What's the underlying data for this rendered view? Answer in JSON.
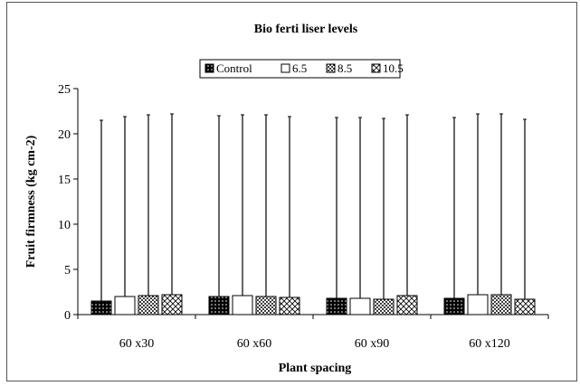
{
  "chart_data": {
    "type": "bar",
    "title": "Bio ferti liser levels",
    "xlabel": "Plant spacing",
    "ylabel": "Fruit firmness (kg cm-2)",
    "ylim": [
      0,
      25
    ],
    "yticks": [
      0,
      5,
      10,
      15,
      20,
      25
    ],
    "grid": false,
    "legend_position": "top",
    "error_bars": true,
    "categories": [
      "60 x30",
      "60 x60",
      "60 x90",
      "60 x120"
    ],
    "series": [
      {
        "name": "Control",
        "pattern": "black-dots",
        "values": [
          1.5,
          2.0,
          1.8,
          1.8
        ],
        "error_high": [
          21.5,
          22.0,
          21.8,
          21.8
        ]
      },
      {
        "name": "6.5",
        "pattern": "white",
        "values": [
          2.0,
          2.1,
          1.8,
          2.2
        ],
        "error_high": [
          21.9,
          22.1,
          21.8,
          22.2
        ]
      },
      {
        "name": "8.5",
        "pattern": "dots",
        "values": [
          2.1,
          2.0,
          1.7,
          2.2
        ],
        "error_high": [
          22.1,
          22.1,
          21.7,
          22.2
        ]
      },
      {
        "name": "10.5",
        "pattern": "crosshatch",
        "values": [
          2.2,
          1.9,
          2.1,
          1.7
        ],
        "error_high": [
          22.2,
          21.9,
          22.1,
          21.6
        ]
      }
    ]
  }
}
